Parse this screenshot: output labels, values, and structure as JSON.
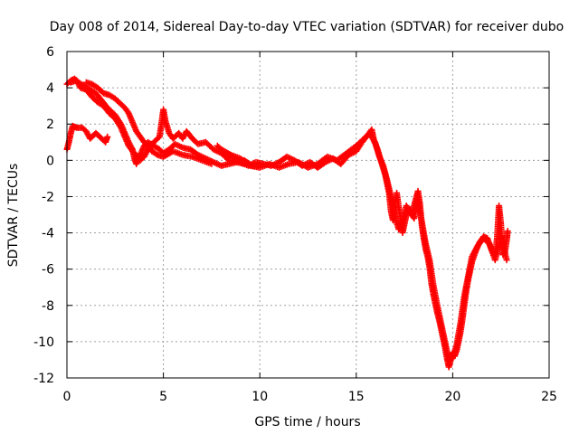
{
  "chart_data": {
    "type": "scatter",
    "title": "Day 008 of 2014, Sidereal Day-to-day VTEC variation (SDTVAR) for receiver dubo",
    "xlabel": "GPS time / hours",
    "ylabel": "SDTVAR / TECUs",
    "xlim": [
      0,
      25
    ],
    "ylim": [
      -12,
      6
    ],
    "xticks": [
      0,
      5,
      10,
      15,
      20,
      25
    ],
    "yticks": [
      -12,
      -10,
      -8,
      -6,
      -4,
      -2,
      0,
      2,
      4,
      6
    ],
    "grid": true,
    "marker": "+",
    "series": [
      {
        "name": "SDTVAR",
        "color": "#ff0000",
        "paths": [
          [
            [
              0.0,
              0.6
            ],
            [
              0.1,
              1.0
            ],
            [
              0.2,
              1.5
            ],
            [
              0.3,
              1.9
            ],
            [
              0.5,
              1.8
            ],
            [
              0.8,
              1.8
            ],
            [
              1.0,
              1.6
            ],
            [
              1.2,
              1.2
            ],
            [
              1.5,
              1.5
            ],
            [
              1.8,
              1.2
            ],
            [
              2.0,
              1.0
            ],
            [
              2.1,
              1.3
            ]
          ],
          [
            [
              0.0,
              4.2
            ],
            [
              0.2,
              4.4
            ],
            [
              0.4,
              4.5
            ],
            [
              0.6,
              4.3
            ],
            [
              0.9,
              4.1
            ],
            [
              1.2,
              3.9
            ],
            [
              1.5,
              3.7
            ],
            [
              1.8,
              3.3
            ],
            [
              2.1,
              2.9
            ],
            [
              2.5,
              2.5
            ],
            [
              2.8,
              2.0
            ],
            [
              3.0,
              1.5
            ],
            [
              3.2,
              1.0
            ],
            [
              3.4,
              0.6
            ],
            [
              3.5,
              0.1
            ],
            [
              3.6,
              -0.2
            ],
            [
              3.8,
              0.3
            ],
            [
              4.0,
              0.8
            ],
            [
              4.2,
              1.0
            ],
            [
              4.5,
              0.8
            ],
            [
              4.8,
              0.6
            ],
            [
              5.0,
              0.4
            ],
            [
              5.3,
              0.6
            ],
            [
              5.6,
              0.9
            ],
            [
              6.0,
              0.7
            ],
            [
              6.4,
              0.6
            ],
            [
              6.8,
              0.3
            ],
            [
              7.2,
              0.1
            ],
            [
              7.6,
              -0.1
            ],
            [
              8.0,
              -0.3
            ],
            [
              8.4,
              -0.2
            ],
            [
              8.8,
              -0.1
            ],
            [
              9.2,
              0.0
            ],
            [
              9.6,
              -0.3
            ],
            [
              10.0,
              -0.3
            ]
          ],
          [
            [
              0.2,
              4.3
            ],
            [
              0.5,
              4.4
            ],
            [
              0.7,
              4.0
            ],
            [
              1.0,
              3.9
            ],
            [
              1.3,
              3.5
            ],
            [
              1.6,
              3.2
            ],
            [
              1.9,
              3.0
            ],
            [
              2.2,
              2.6
            ],
            [
              2.5,
              2.3
            ],
            [
              2.8,
              1.8
            ],
            [
              3.0,
              1.3
            ],
            [
              3.2,
              0.8
            ],
            [
              3.4,
              0.5
            ],
            [
              3.6,
              0.3
            ],
            [
              3.8,
              0.0
            ],
            [
              4.0,
              0.2
            ],
            [
              4.2,
              0.6
            ],
            [
              4.4,
              0.9
            ],
            [
              4.6,
              1.1
            ],
            [
              4.8,
              1.3
            ],
            [
              4.9,
              2.0
            ],
            [
              5.0,
              2.8
            ],
            [
              5.1,
              2.2
            ],
            [
              5.3,
              1.5
            ],
            [
              5.5,
              1.2
            ],
            [
              5.8,
              1.5
            ],
            [
              6.0,
              1.2
            ],
            [
              6.2,
              1.6
            ],
            [
              6.5,
              1.2
            ],
            [
              6.8,
              0.9
            ],
            [
              7.2,
              1.0
            ],
            [
              7.6,
              0.6
            ],
            [
              8.0,
              0.4
            ],
            [
              8.4,
              0.0
            ],
            [
              8.8,
              -0.1
            ],
            [
              9.2,
              -0.2
            ]
          ],
          [
            [
              1.0,
              4.3
            ],
            [
              1.3,
              4.2
            ],
            [
              1.6,
              4.0
            ],
            [
              1.9,
              3.7
            ],
            [
              2.2,
              3.6
            ],
            [
              2.5,
              3.4
            ],
            [
              2.8,
              3.1
            ],
            [
              3.0,
              2.9
            ],
            [
              3.2,
              2.6
            ],
            [
              3.4,
              2.1
            ],
            [
              3.6,
              1.6
            ],
            [
              3.8,
              1.3
            ],
            [
              4.0,
              1.0
            ],
            [
              4.2,
              0.8
            ],
            [
              4.4,
              0.5
            ],
            [
              4.7,
              0.3
            ],
            [
              5.0,
              0.2
            ],
            [
              5.5,
              0.5
            ],
            [
              6.0,
              0.3
            ],
            [
              6.5,
              0.2
            ],
            [
              7.0,
              0.0
            ],
            [
              7.5,
              -0.2
            ]
          ],
          [
            [
              7.8,
              0.8
            ],
            [
              8.2,
              0.4
            ],
            [
              8.6,
              0.2
            ],
            [
              9.0,
              -0.1
            ],
            [
              9.4,
              -0.3
            ],
            [
              9.8,
              -0.1
            ],
            [
              10.2,
              -0.2
            ],
            [
              10.6,
              -0.3
            ],
            [
              11.0,
              -0.1
            ],
            [
              11.4,
              0.2
            ],
            [
              11.8,
              0.0
            ],
            [
              12.2,
              -0.3
            ],
            [
              12.6,
              -0.1
            ],
            [
              13.0,
              -0.4
            ],
            [
              13.4,
              -0.1
            ],
            [
              13.8,
              0.1
            ],
            [
              14.2,
              -0.2
            ],
            [
              14.6,
              0.3
            ],
            [
              15.0,
              0.5
            ],
            [
              15.3,
              1.0
            ],
            [
              15.6,
              1.4
            ],
            [
              15.8,
              1.7
            ],
            [
              15.9,
              1.2
            ],
            [
              16.1,
              0.6
            ],
            [
              16.3,
              -0.1
            ],
            [
              16.5,
              -0.8
            ],
            [
              16.7,
              -1.8
            ],
            [
              16.8,
              -2.8
            ],
            [
              16.9,
              -3.3
            ],
            [
              17.0,
              -2.5
            ],
            [
              17.1,
              -1.8
            ],
            [
              17.2,
              -2.6
            ],
            [
              17.3,
              -3.2
            ],
            [
              17.4,
              -4.0
            ],
            [
              17.5,
              -3.5
            ],
            [
              17.6,
              -3.0
            ],
            [
              17.7,
              -2.8
            ],
            [
              17.8,
              -2.7
            ],
            [
              17.9,
              -3.0
            ],
            [
              18.0,
              -2.5
            ],
            [
              18.1,
              -2.1
            ],
            [
              18.2,
              -1.7
            ],
            [
              18.3,
              -2.4
            ],
            [
              18.4,
              -3.6
            ],
            [
              18.5,
              -4.3
            ],
            [
              18.6,
              -4.9
            ],
            [
              18.7,
              -5.3
            ],
            [
              18.8,
              -5.9
            ],
            [
              18.9,
              -6.8
            ],
            [
              19.0,
              -7.4
            ],
            [
              19.1,
              -7.9
            ],
            [
              19.2,
              -8.4
            ],
            [
              19.3,
              -8.8
            ],
            [
              19.4,
              -9.3
            ],
            [
              19.5,
              -9.8
            ],
            [
              19.6,
              -10.3
            ],
            [
              19.7,
              -10.9
            ],
            [
              19.8,
              -11.4
            ],
            [
              19.9,
              -11.0
            ],
            [
              20.0,
              -10.6
            ],
            [
              20.1,
              -10.8
            ],
            [
              20.2,
              -10.5
            ],
            [
              20.3,
              -10.0
            ],
            [
              20.4,
              -9.5
            ],
            [
              20.5,
              -8.8
            ],
            [
              20.6,
              -8.0
            ],
            [
              20.7,
              -7.2
            ],
            [
              20.8,
              -6.6
            ],
            [
              20.9,
              -6.1
            ],
            [
              21.0,
              -5.6
            ],
            [
              21.2,
              -5.0
            ],
            [
              21.4,
              -4.5
            ],
            [
              21.6,
              -4.2
            ],
            [
              21.8,
              -4.3
            ],
            [
              22.0,
              -4.9
            ],
            [
              22.2,
              -5.3
            ],
            [
              22.3,
              -4.3
            ],
            [
              22.4,
              -2.5
            ],
            [
              22.5,
              -3.5
            ],
            [
              22.6,
              -5.2
            ],
            [
              22.7,
              -5.1
            ],
            [
              22.8,
              -4.4
            ],
            [
              22.85,
              -3.9
            ]
          ],
          [
            [
              8.0,
              0.6
            ],
            [
              8.5,
              0.3
            ],
            [
              9.0,
              0.1
            ],
            [
              9.5,
              -0.3
            ],
            [
              10.0,
              -0.4
            ],
            [
              10.5,
              -0.2
            ],
            [
              11.0,
              -0.4
            ],
            [
              11.5,
              -0.2
            ],
            [
              12.0,
              -0.1
            ],
            [
              12.5,
              -0.4
            ],
            [
              13.0,
              -0.2
            ],
            [
              13.5,
              0.2
            ],
            [
              14.0,
              0.0
            ],
            [
              14.5,
              0.4
            ],
            [
              15.0,
              0.8
            ],
            [
              15.4,
              1.2
            ],
            [
              15.7,
              1.5
            ],
            [
              16.0,
              0.9
            ],
            [
              16.2,
              0.2
            ],
            [
              16.4,
              -0.3
            ],
            [
              16.6,
              -1.1
            ],
            [
              16.8,
              -2.0
            ],
            [
              17.0,
              -3.1
            ],
            [
              17.2,
              -3.8
            ],
            [
              17.4,
              -3.3
            ],
            [
              17.6,
              -2.5
            ],
            [
              17.8,
              -2.9
            ],
            [
              18.0,
              -3.2
            ],
            [
              18.2,
              -2.2
            ],
            [
              18.4,
              -3.4
            ],
            [
              18.6,
              -4.6
            ],
            [
              18.8,
              -5.5
            ],
            [
              19.0,
              -6.9
            ],
            [
              19.2,
              -8.0
            ],
            [
              19.4,
              -9.0
            ],
            [
              19.6,
              -10.0
            ],
            [
              19.8,
              -11.0
            ],
            [
              20.0,
              -10.9
            ],
            [
              20.2,
              -10.2
            ],
            [
              20.4,
              -9.0
            ],
            [
              20.6,
              -7.5
            ],
            [
              20.8,
              -6.4
            ],
            [
              21.0,
              -5.3
            ],
            [
              21.3,
              -4.7
            ],
            [
              21.6,
              -4.3
            ],
            [
              21.9,
              -4.6
            ],
            [
              22.2,
              -5.5
            ],
            [
              22.5,
              -4.2
            ],
            [
              22.8,
              -5.5
            ]
          ]
        ]
      }
    ]
  }
}
